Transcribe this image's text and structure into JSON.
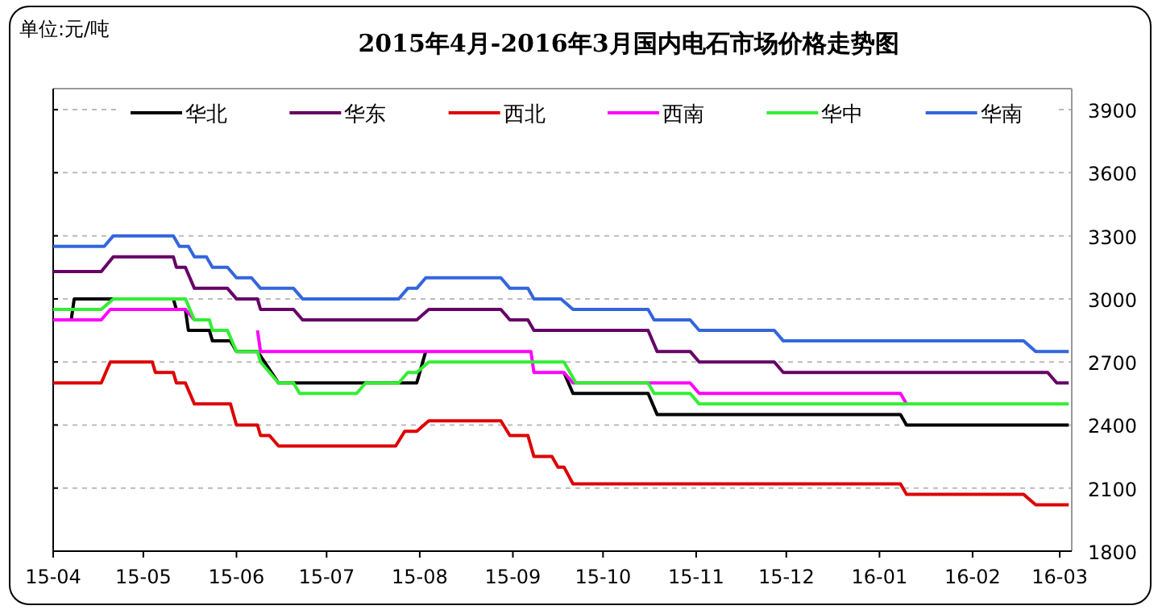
{
  "chart_data": {
    "type": "line",
    "title": "2015年4月-2016年3月国内电石市场价格走势图",
    "annotations": [
      "单位:元/吨"
    ],
    "xlim": [
      "2015-04-01",
      "2016-03-05"
    ],
    "xticks": [
      {
        "value": "2015-04-01",
        "label": "15-04"
      },
      {
        "value": "2015-05-01",
        "label": "15-05"
      },
      {
        "value": "2015-06-01",
        "label": "15-06"
      },
      {
        "value": "2015-07-01",
        "label": "15-07"
      },
      {
        "value": "2015-08-01",
        "label": "15-08"
      },
      {
        "value": "2015-09-01",
        "label": "15-09"
      },
      {
        "value": "2015-10-01",
        "label": "15-10"
      },
      {
        "value": "2015-11-01",
        "label": "15-11"
      },
      {
        "value": "2015-12-01",
        "label": "15-12"
      },
      {
        "value": "2016-01-01",
        "label": "16-01"
      },
      {
        "value": "2016-02-01",
        "label": "16-02"
      },
      {
        "value": "2016-03-01",
        "label": "16-03"
      }
    ],
    "ylim": [
      1800,
      4000
    ],
    "yticks": [
      1800,
      2100,
      2400,
      2700,
      3000,
      3300,
      3600,
      3900
    ],
    "grid": "y",
    "legend": "top",
    "series": [
      {
        "name": "华北",
        "color": "#000000",
        "x": [
          "2015-04-01",
          "2015-04-07",
          "2015-04-08",
          "2015-05-11",
          "2015-05-12",
          "2015-05-15",
          "2015-05-16",
          "2015-05-23",
          "2015-05-24",
          "2015-05-30",
          "2015-06-01",
          "2015-06-08",
          "2015-06-15",
          "2015-07-31",
          "2015-08-03",
          "2015-09-07",
          "2015-09-08",
          "2015-09-18",
          "2015-09-21",
          "2015-10-16",
          "2015-10-19",
          "2016-01-08",
          "2016-01-10",
          "2016-03-04"
        ],
        "values": [
          2900,
          2900,
          3000,
          3000,
          2950,
          2950,
          2850,
          2850,
          2800,
          2800,
          2750,
          2750,
          2600,
          2600,
          2750,
          null,
          null,
          2650,
          2550,
          2550,
          2450,
          2450,
          2400,
          2400
        ]
      },
      {
        "name": "华东",
        "color": "#660066",
        "x": [
          "2015-04-01",
          "2015-04-17",
          "2015-04-21",
          "2015-05-11",
          "2015-05-12",
          "2015-05-15",
          "2015-05-18",
          "2015-05-29",
          "2015-06-01",
          "2015-06-08",
          "2015-06-09",
          "2015-06-20",
          "2015-06-23",
          "2015-07-31",
          "2015-08-04",
          "2015-08-28",
          "2015-08-31",
          "2015-09-06",
          "2015-09-08",
          "2015-10-16",
          "2015-10-19",
          "2015-10-30",
          "2015-11-02",
          "2015-11-27",
          "2015-11-30",
          "2016-02-26",
          "2016-02-29",
          "2016-03-04"
        ],
        "values": [
          3130,
          3130,
          3200,
          3200,
          3150,
          3150,
          3050,
          3050,
          3000,
          3000,
          2950,
          2950,
          2900,
          2900,
          2950,
          2950,
          2900,
          2900,
          2850,
          2850,
          2750,
          2750,
          2700,
          2700,
          2650,
          2650,
          2600,
          2600
        ]
      },
      {
        "name": "西北",
        "color": "#dd0000",
        "x": [
          "2015-04-01",
          "2015-04-17",
          "2015-04-20",
          "2015-05-04",
          "2015-05-05",
          "2015-05-11",
          "2015-05-12",
          "2015-05-15",
          "2015-05-18",
          "2015-05-30",
          "2015-06-01",
          "2015-06-08",
          "2015-06-09",
          "2015-06-12",
          "2015-06-15",
          "2015-07-24",
          "2015-07-27",
          "2015-07-31",
          "2015-08-04",
          "2015-08-28",
          "2015-08-31",
          "2015-09-06",
          "2015-09-08",
          "2015-09-14",
          "2015-09-16",
          "2015-09-18",
          "2015-09-21",
          "2016-01-08",
          "2016-01-10",
          "2016-02-18",
          "2016-02-22",
          "2016-03-04"
        ],
        "values": [
          2600,
          2600,
          2700,
          2700,
          2650,
          2650,
          2600,
          2600,
          2500,
          2500,
          2400,
          2400,
          2350,
          2350,
          2300,
          2300,
          2370,
          2370,
          2420,
          2420,
          2350,
          2350,
          2250,
          2250,
          2200,
          2200,
          2120,
          2120,
          2070,
          2070,
          2020,
          2020
        ]
      },
      {
        "name": "西南",
        "color": "#ff00ff",
        "x": [
          "2015-04-01",
          "2015-04-17",
          "2015-04-20",
          "2015-05-15",
          "2015-05-18",
          "2015-05-23",
          "2015-05-24",
          "2015-06-08",
          "2015-06-09",
          "2015-09-07",
          "2015-09-08",
          "2015-09-18",
          "2015-09-21",
          "2015-10-30",
          "2015-11-02",
          "2016-01-08",
          "2016-01-10"
        ],
        "values": [
          2900,
          2900,
          2950,
          2950,
          2900,
          null,
          null,
          2850,
          2750,
          2750,
          2650,
          2650,
          2600,
          2600,
          2550,
          2550,
          2500
        ]
      },
      {
        "name": "华中",
        "color": "#33ee33",
        "x": [
          "2015-04-01",
          "2015-04-17",
          "2015-04-21",
          "2015-05-15",
          "2015-05-18",
          "2015-05-23",
          "2015-05-24",
          "2015-05-29",
          "2015-06-01",
          "2015-06-08",
          "2015-06-09",
          "2015-06-15",
          "2015-06-20",
          "2015-06-22",
          "2015-07-11",
          "2015-07-14",
          "2015-07-25",
          "2015-07-28",
          "2015-07-31",
          "2015-08-04",
          "2015-09-18",
          "2015-09-22",
          "2015-10-16",
          "2015-10-18",
          "2015-10-30",
          "2015-11-02",
          "2016-03-04"
        ],
        "values": [
          2950,
          2950,
          3000,
          3000,
          2900,
          2900,
          2850,
          2850,
          2750,
          2750,
          2700,
          2600,
          2600,
          2550,
          2550,
          2600,
          2600,
          2650,
          2650,
          2700,
          2700,
          2600,
          2600,
          2550,
          2550,
          2500,
          2500
        ]
      },
      {
        "name": "华南",
        "color": "#3366dd",
        "x": [
          "2015-04-01",
          "2015-04-18",
          "2015-04-21",
          "2015-05-11",
          "2015-05-13",
          "2015-05-16",
          "2015-05-18",
          "2015-05-22",
          "2015-05-24",
          "2015-05-29",
          "2015-06-01",
          "2015-06-06",
          "2015-06-09",
          "2015-06-20",
          "2015-06-23",
          "2015-07-25",
          "2015-07-28",
          "2015-07-31",
          "2015-08-03",
          "2015-08-28",
          "2015-08-31",
          "2015-09-06",
          "2015-09-08",
          "2015-09-17",
          "2015-09-21",
          "2015-10-16",
          "2015-10-18",
          "2015-10-30",
          "2015-11-02",
          "2015-11-27",
          "2015-11-30",
          "2016-02-18",
          "2016-02-22",
          "2016-03-04"
        ],
        "values": [
          3250,
          3250,
          3300,
          3300,
          3250,
          3250,
          3200,
          3200,
          3150,
          3150,
          3100,
          3100,
          3050,
          3050,
          3000,
          3000,
          3050,
          3050,
          3100,
          3100,
          3050,
          3050,
          3000,
          3000,
          2950,
          2950,
          2900,
          2900,
          2850,
          2850,
          2800,
          2800,
          2750,
          2750
        ]
      }
    ]
  }
}
